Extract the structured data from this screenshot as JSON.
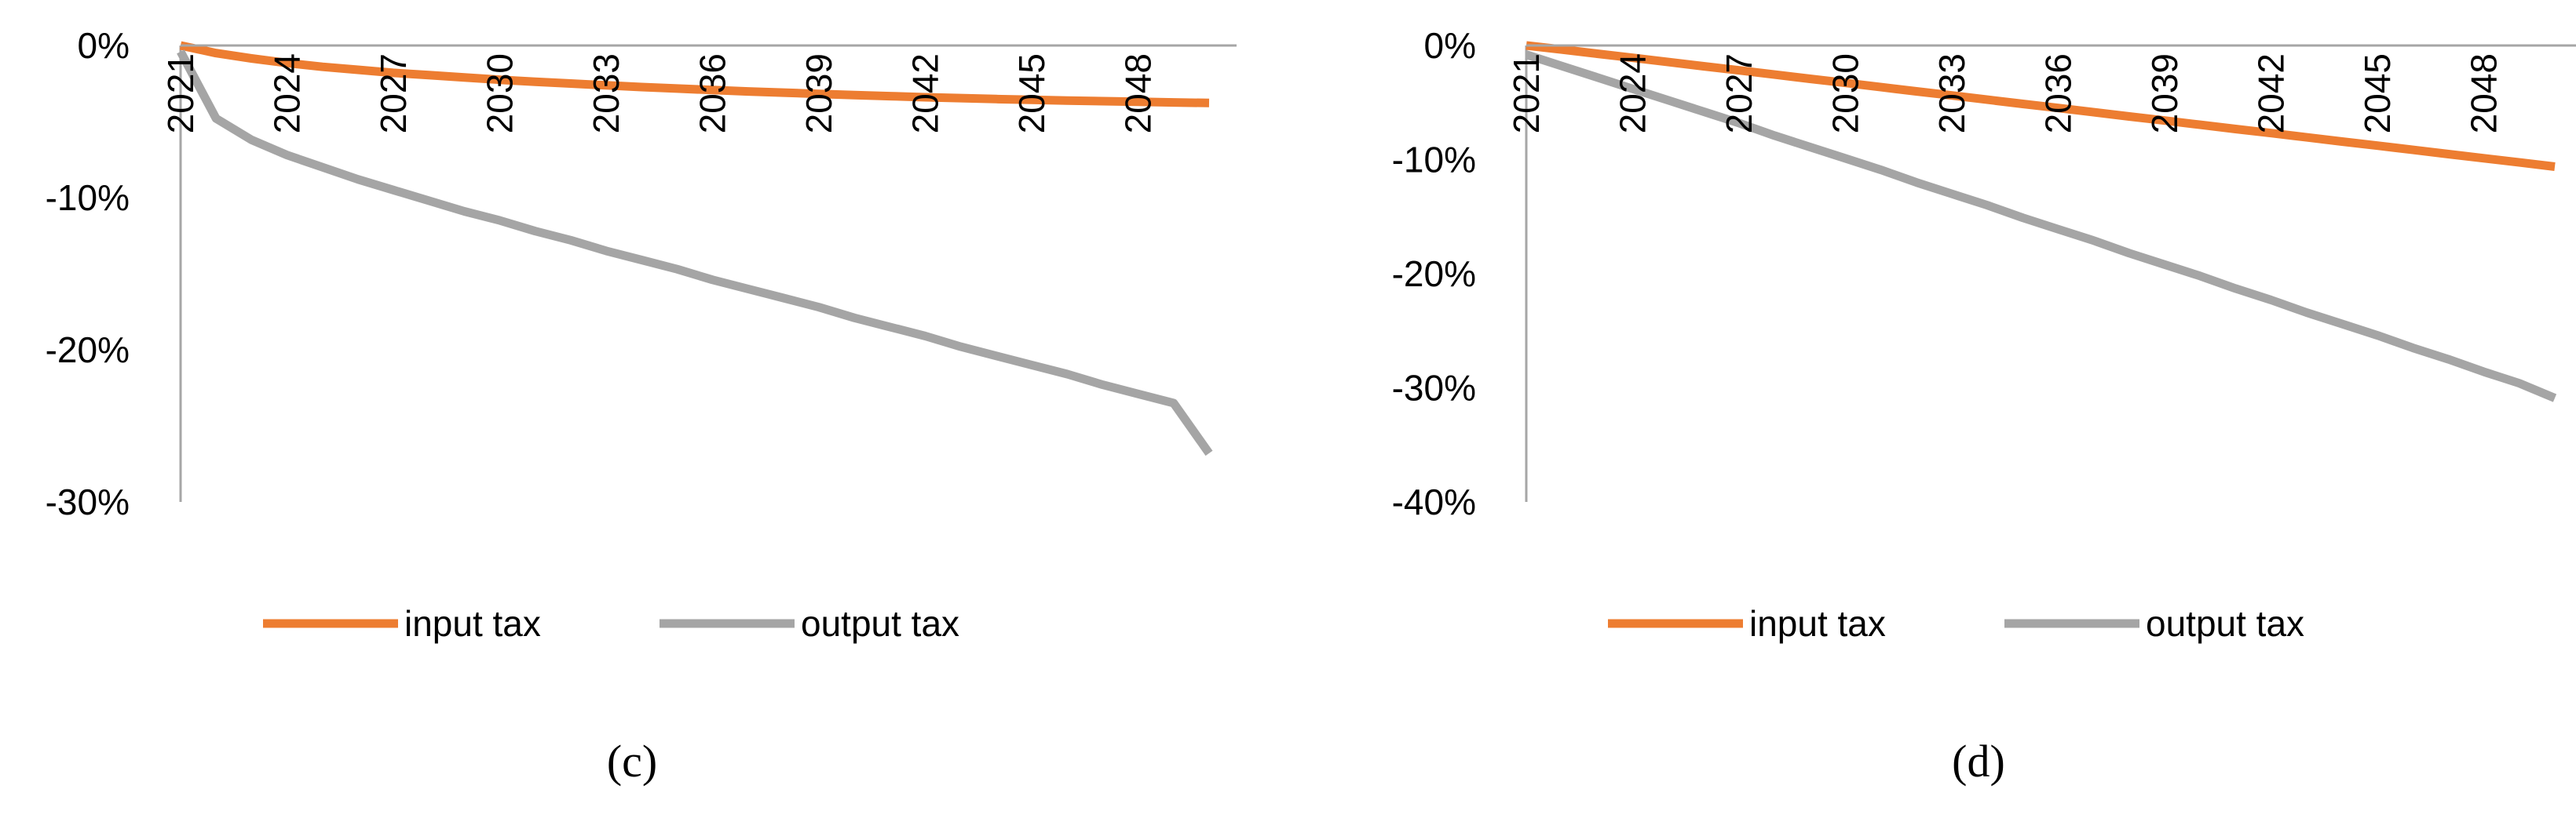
{
  "chart_data": [
    {
      "type": "line",
      "panel_label": "(c)",
      "ylim": [
        -0.3,
        0.0
      ],
      "y_ticks": [
        {
          "value": 0.0,
          "label": "0%"
        },
        {
          "value": -0.1,
          "label": "-10%"
        },
        {
          "value": -0.2,
          "label": "-20%"
        },
        {
          "value": -0.3,
          "label": "-30%"
        }
      ],
      "x_range": [
        2021,
        2050
      ],
      "x_ticks": [
        "2021",
        "2024",
        "2027",
        "2030",
        "2033",
        "2036",
        "2039",
        "2042",
        "2045",
        "2048"
      ],
      "x": [
        2021,
        2022,
        2023,
        2024,
        2025,
        2026,
        2027,
        2028,
        2029,
        2030,
        2031,
        2032,
        2033,
        2034,
        2035,
        2036,
        2037,
        2038,
        2039,
        2040,
        2041,
        2042,
        2043,
        2044,
        2045,
        2046,
        2047,
        2048,
        2049,
        2050
      ],
      "legend_position": "bottom",
      "series": [
        {
          "name": "input tax",
          "color": "#ED7D31",
          "values": [
            0.0,
            -0.005,
            -0.0085,
            -0.0115,
            -0.014,
            -0.016,
            -0.018,
            -0.0195,
            -0.021,
            -0.0225,
            -0.0238,
            -0.025,
            -0.0262,
            -0.0273,
            -0.0283,
            -0.0293,
            -0.0302,
            -0.031,
            -0.0318,
            -0.0326,
            -0.0333,
            -0.034,
            -0.0346,
            -0.0352,
            -0.0357,
            -0.0362,
            -0.0366,
            -0.037,
            -0.0374,
            -0.0378
          ]
        },
        {
          "name": "output tax",
          "color": "#A5A5A5",
          "values": [
            -0.004,
            -0.048,
            -0.062,
            -0.072,
            -0.08,
            -0.088,
            -0.095,
            -0.102,
            -0.109,
            -0.115,
            -0.122,
            -0.128,
            -0.135,
            -0.141,
            -0.147,
            -0.154,
            -0.16,
            -0.166,
            -0.172,
            -0.179,
            -0.185,
            -0.191,
            -0.198,
            -0.204,
            -0.21,
            -0.216,
            -0.223,
            -0.229,
            -0.235,
            -0.268
          ]
        }
      ]
    },
    {
      "type": "line",
      "panel_label": "(d)",
      "ylim": [
        -0.4,
        0.0
      ],
      "y_ticks": [
        {
          "value": 0.0,
          "label": "0%"
        },
        {
          "value": -0.1,
          "label": "-10%"
        },
        {
          "value": -0.2,
          "label": "-20%"
        },
        {
          "value": -0.3,
          "label": "-30%"
        },
        {
          "value": -0.4,
          "label": "-40%"
        }
      ],
      "x_range": [
        2021,
        2050
      ],
      "x_ticks": [
        "2021",
        "2024",
        "2027",
        "2030",
        "2033",
        "2036",
        "2039",
        "2042",
        "2045",
        "2048"
      ],
      "x": [
        2021,
        2022,
        2023,
        2024,
        2025,
        2026,
        2027,
        2028,
        2029,
        2030,
        2031,
        2032,
        2033,
        2034,
        2035,
        2036,
        2037,
        2038,
        2039,
        2040,
        2041,
        2042,
        2043,
        2044,
        2045,
        2046,
        2047,
        2048,
        2049,
        2050
      ],
      "legend_position": "bottom",
      "series": [
        {
          "name": "input tax",
          "color": "#ED7D31",
          "values": [
            0.0,
            -0.0035,
            -0.0072,
            -0.0108,
            -0.0145,
            -0.0182,
            -0.0218,
            -0.0255,
            -0.0292,
            -0.0328,
            -0.0365,
            -0.0402,
            -0.0438,
            -0.0475,
            -0.0512,
            -0.0548,
            -0.0585,
            -0.0622,
            -0.0658,
            -0.0695,
            -0.0732,
            -0.0768,
            -0.0805,
            -0.0842,
            -0.0878,
            -0.0915,
            -0.0952,
            -0.0988,
            -0.1025,
            -0.1062
          ]
        },
        {
          "name": "output tax",
          "color": "#A5A5A5",
          "values": [
            -0.008,
            -0.018,
            -0.028,
            -0.038,
            -0.048,
            -0.058,
            -0.068,
            -0.079,
            -0.089,
            -0.099,
            -0.109,
            -0.12,
            -0.13,
            -0.14,
            -0.151,
            -0.161,
            -0.171,
            -0.182,
            -0.192,
            -0.202,
            -0.213,
            -0.223,
            -0.234,
            -0.244,
            -0.254,
            -0.265,
            -0.275,
            -0.286,
            -0.296,
            -0.309
          ]
        }
      ]
    }
  ]
}
